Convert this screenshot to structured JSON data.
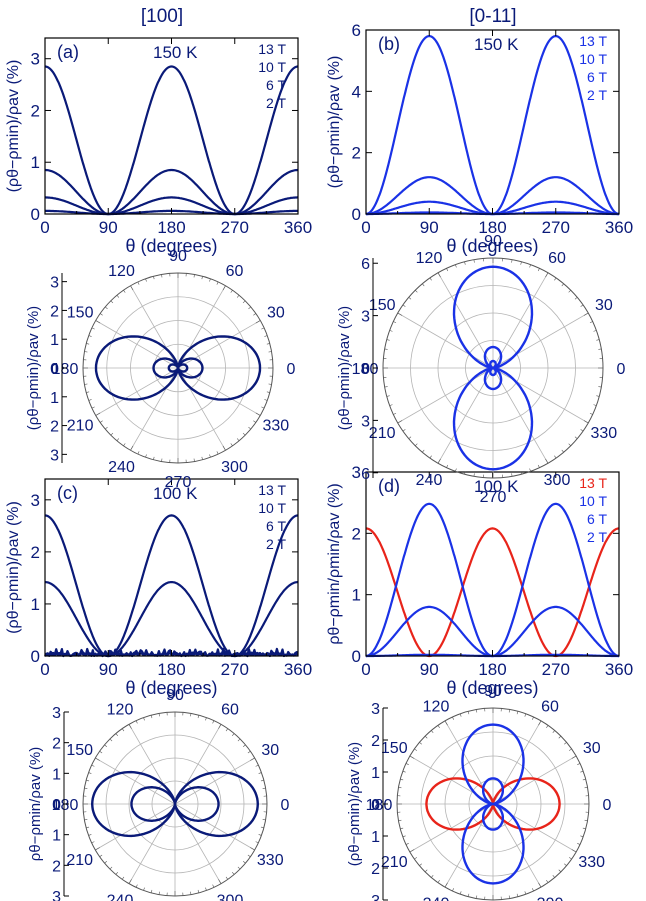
{
  "figure": {
    "column_titles": [
      "[100]",
      "[0-11]"
    ]
  },
  "chart_data": [
    {
      "id": "a",
      "type": "line",
      "panel_label": "(a)",
      "annotation": "150 K",
      "xlabel": "θ (degrees)",
      "ylabel": "(ρθ−ρmin)/ρav (%)",
      "xlim": [
        0,
        360
      ],
      "ylim": [
        0,
        3.4
      ],
      "xticks": [
        "0",
        "90",
        "180",
        "270",
        "360"
      ],
      "yticks": [
        "0",
        "1",
        "2",
        "3"
      ],
      "x": [
        0,
        90,
        180,
        270,
        360
      ],
      "legend": [
        "13 T",
        "10 T",
        "6 T",
        "2 T"
      ],
      "series": [
        {
          "name": "13 T",
          "shape": "cos2",
          "amplitude": 2.85,
          "color": "#0a1a78"
        },
        {
          "name": "10 T",
          "shape": "cos2",
          "amplitude": 0.85,
          "color": "#0a1a78"
        },
        {
          "name": "6 T",
          "shape": "cos2",
          "amplitude": 0.32,
          "color": "#0a1a78"
        },
        {
          "name": "2 T",
          "shape": "cos2",
          "amplitude": 0.06,
          "color": "#0a1a78"
        }
      ]
    },
    {
      "id": "b",
      "type": "line",
      "panel_label": "(b)",
      "annotation": "150 K",
      "xlabel": "θ (degrees)",
      "ylabel": "(ρθ−ρmin)/ρav (%)",
      "xlim": [
        0,
        360
      ],
      "ylim": [
        0,
        6
      ],
      "xticks": [
        "0",
        "90",
        "180",
        "270",
        "360"
      ],
      "yticks": [
        "0",
        "2",
        "4",
        "6"
      ],
      "x": [
        0,
        90,
        180,
        270,
        360
      ],
      "legend": [
        "13 T",
        "10 T",
        "6 T",
        "2 T"
      ],
      "series": [
        {
          "name": "13 T",
          "shape": "sin2",
          "amplitude": 5.8,
          "color": "#1a32e6"
        },
        {
          "name": "10 T",
          "shape": "sin2",
          "amplitude": 1.2,
          "color": "#1a32e6"
        },
        {
          "name": "6 T",
          "shape": "sin2",
          "amplitude": 0.4,
          "color": "#1a32e6"
        },
        {
          "name": "2 T",
          "shape": "sin2",
          "amplitude": 0.05,
          "color": "#1a32e6"
        }
      ]
    },
    {
      "id": "a-polar",
      "type": "polar",
      "ylabel": "(ρθ−ρmin)/ρav (%)",
      "angle_ticks": [
        "0",
        "30",
        "60",
        "90",
        "120",
        "150",
        "180",
        "210",
        "240",
        "270",
        "300",
        "330"
      ],
      "radial_ticks": [
        "0",
        "1",
        "2",
        "3"
      ],
      "rmax": 3.3,
      "series": [
        {
          "name": "13 T",
          "shape": "cos2",
          "amplitude": 2.85,
          "color": "#0a1a78"
        },
        {
          "name": "10 T",
          "shape": "cos2",
          "amplitude": 0.85,
          "color": "#0a1a78"
        },
        {
          "name": "6 T",
          "shape": "cos2",
          "amplitude": 0.32,
          "color": "#0a1a78"
        }
      ]
    },
    {
      "id": "b-polar",
      "type": "polar",
      "ylabel": "(ρθ−ρmin)/ρav (%)",
      "angle_ticks": [
        "0",
        "30",
        "60",
        "90",
        "120",
        "150",
        "180",
        "210",
        "240",
        "270",
        "300",
        "330"
      ],
      "radial_ticks": [
        "0",
        "3",
        "6"
      ],
      "rmax": 6.3,
      "series": [
        {
          "name": "13 T",
          "shape": "sin2",
          "amplitude": 5.8,
          "color": "#1a32e6"
        },
        {
          "name": "10 T",
          "shape": "sin2",
          "amplitude": 1.2,
          "color": "#1a32e6"
        },
        {
          "name": "6 T",
          "shape": "sin2",
          "amplitude": 0.4,
          "color": "#1a32e6"
        }
      ]
    },
    {
      "id": "c",
      "type": "line",
      "panel_label": "(c)",
      "annotation": "100 K",
      "xlabel": "θ (degrees)",
      "ylabel": "(ρθ−ρmin)/ρav (%)",
      "xlim": [
        0,
        360
      ],
      "ylim": [
        0,
        3.4
      ],
      "xticks": [
        "0",
        "90",
        "180",
        "270",
        "360"
      ],
      "yticks": [
        "0",
        "1",
        "2",
        "3"
      ],
      "x": [
        0,
        90,
        180,
        270,
        360
      ],
      "legend": [
        "13 T",
        "10 T",
        "6 T",
        "2 T"
      ],
      "series": [
        {
          "name": "13 T",
          "shape": "cos2",
          "amplitude": 2.7,
          "color": "#0a1a78"
        },
        {
          "name": "10 T",
          "shape": "cos2",
          "amplitude": 1.42,
          "color": "#0a1a78"
        },
        {
          "name": "6 T",
          "shape": "noise",
          "amplitude": 0.1,
          "color": "#0a1a78"
        },
        {
          "name": "2 T",
          "shape": "noise",
          "amplitude": 0.05,
          "color": "#0a1a78"
        }
      ]
    },
    {
      "id": "d",
      "type": "line",
      "panel_label": "(d)",
      "annotation": "100 K",
      "xlabel": "θ (degrees)",
      "ylabel": "ρθ−ρmin/ρmin/ρav (%)",
      "xlim": [
        0,
        360
      ],
      "ylim": [
        0,
        3
      ],
      "xticks": [
        "0",
        "90",
        "180",
        "270",
        "360"
      ],
      "yticks": [
        "0",
        "1",
        "2",
        "3"
      ],
      "x": [
        0,
        90,
        180,
        270,
        360
      ],
      "legend": [
        "13 T",
        "10 T",
        "6 T",
        "2 T"
      ],
      "legend_colors": [
        "#e8241a",
        "#1a32e6",
        "#1a32e6",
        "#1a32e6"
      ],
      "series": [
        {
          "name": "13 T",
          "shape": "cos2",
          "amplitude": 2.08,
          "color": "#e8241a"
        },
        {
          "name": "10 T",
          "shape": "sin2",
          "amplitude": 2.48,
          "color": "#1a32e6"
        },
        {
          "name": "6 T",
          "shape": "sin2",
          "amplitude": 0.8,
          "color": "#1a32e6"
        },
        {
          "name": "2 T",
          "shape": "sin2",
          "amplitude": 0.02,
          "color": "#1a32e6"
        }
      ]
    },
    {
      "id": "c-polar",
      "type": "polar",
      "ylabel": "ρθ−ρmin/ρav (%)",
      "angle_ticks": [
        "0",
        "30",
        "60",
        "90",
        "120",
        "150",
        "180",
        "210",
        "240",
        "270",
        "300",
        "330"
      ],
      "radial_ticks": [
        "0",
        "1",
        "2",
        "3"
      ],
      "rmax": 3.0,
      "series": [
        {
          "name": "13 T",
          "shape": "cos2",
          "amplitude": 2.7,
          "color": "#0a1a78"
        },
        {
          "name": "10 T",
          "shape": "cos2",
          "amplitude": 1.42,
          "color": "#0a1a78"
        }
      ]
    },
    {
      "id": "d-polar",
      "type": "polar",
      "ylabel": "(ρθ−ρmin)/ρav (%)",
      "angle_ticks": [
        "0",
        "30",
        "60",
        "90",
        "120",
        "150",
        "180",
        "210",
        "240",
        "270",
        "300",
        "330"
      ],
      "radial_ticks": [
        "0",
        "1",
        "2",
        "3"
      ],
      "rmax": 3.0,
      "series": [
        {
          "name": "13 T",
          "shape": "cos2",
          "amplitude": 2.08,
          "color": "#e8241a"
        },
        {
          "name": "10 T",
          "shape": "sin2",
          "amplitude": 2.48,
          "color": "#1a32e6"
        },
        {
          "name": "6 T",
          "shape": "sin2",
          "amplitude": 0.8,
          "color": "#1a32e6"
        }
      ]
    }
  ]
}
